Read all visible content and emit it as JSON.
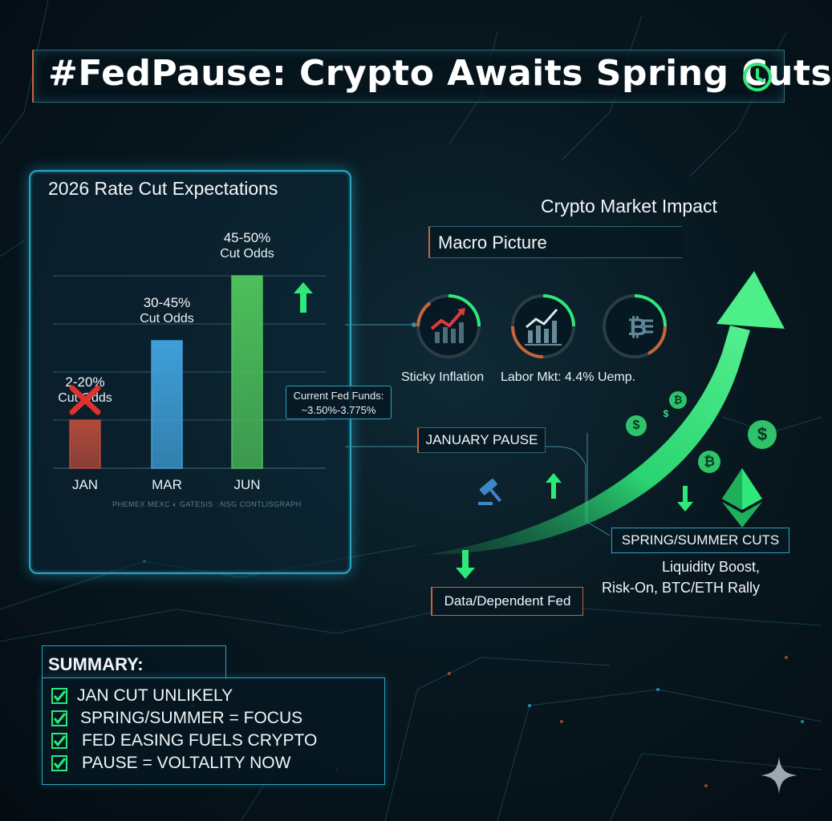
{
  "title": "#FedPause: Crypto Awaits Spring Cuts",
  "icons": {
    "clock": "clock-icon",
    "sparkle": "sparkle-icon",
    "gavel": "gavel-icon",
    "ethereum": "ethereum-icon",
    "bitcoin": "bitcoin-icon",
    "dollar": "dollar-coin-icon"
  },
  "colors": {
    "accent_green": "#2ee87a",
    "accent_cyan": "#2aa4c0",
    "accent_orange": "#c9643a",
    "bar_jan": "#b24a3c",
    "bar_mar": "#3f9fd8",
    "bar_jun": "#4cbf5a"
  },
  "chart_data": {
    "type": "bar",
    "title": "2026 Rate Cut Expectations",
    "categories": [
      "JAN",
      "MAR",
      "JUN"
    ],
    "values": [
      1.0,
      2.65,
      4.0
    ],
    "value_labels": [
      {
        "range": "2-20%",
        "sub": "Cut Odds"
      },
      {
        "range": "30-45%",
        "sub": "Cut Odds"
      },
      {
        "range": "45-50%",
        "sub": "Cut Odds"
      }
    ],
    "grid": true,
    "ylim": [
      0,
      4.5
    ]
  },
  "chart_panel": {
    "sources": "PHEMEX   MEXC   ◐ GATESIS   ◌NSG   CONTLISGRAPH",
    "fed_funds_line1": "Current Fed Funds:",
    "fed_funds_line2": "~3.50%-3.775%"
  },
  "impact": {
    "title": "Crypto Market Impact",
    "macro_label": "Macro Picture",
    "icons": [
      {
        "name": "inflation-chart-icon",
        "label": "Sticky Inflation"
      },
      {
        "name": "labor-chart-icon",
        "label": "Labor Mkt: 4.4% Uemp."
      },
      {
        "name": "bitcoin-icon",
        "label": ""
      }
    ],
    "january_pause": "JANUARY PAUSE",
    "spring_summer": "SPRING/SUMMER CUTS",
    "liquidity_line1": "Liquidity Boost,",
    "liquidity_line2": "Risk-On, BTC/ETH Rally",
    "data_dependent": "Data/Dependent Fed"
  },
  "summary": {
    "title": "SUMMARY:",
    "items": [
      "JAN CUT UNLIKELY",
      "SPRING/SUMMER = FOCUS",
      "FED EASING FUELS CRYPTO",
      "PAUSE = VOLTALITY NOW"
    ]
  }
}
